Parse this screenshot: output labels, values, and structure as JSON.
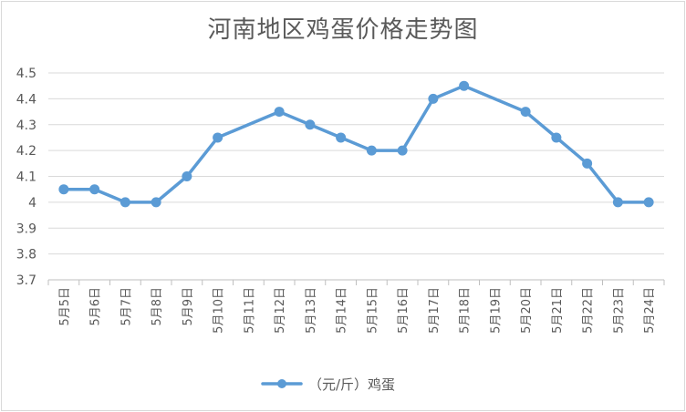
{
  "chart_data": {
    "type": "line",
    "title": "河南地区鸡蛋价格走势图",
    "categories": [
      "5月5日",
      "5月6日",
      "5月7日",
      "5月8日",
      "5月9日",
      "5月10日",
      "5月11日",
      "5月12日",
      "5月13日",
      "5月14日",
      "5月15日",
      "5月16日",
      "5月17日",
      "5月18日",
      "5月19日",
      "5月20日",
      "5月21日",
      "5月22日",
      "5月23日",
      "5月24日"
    ],
    "series": [
      {
        "name": "（元/斤）鸡蛋",
        "values": [
          4.05,
          4.05,
          4.0,
          4.0,
          4.1,
          4.25,
          null,
          4.35,
          4.3,
          4.25,
          4.2,
          4.2,
          4.4,
          4.45,
          null,
          4.35,
          4.25,
          4.15,
          4.0,
          4.0
        ],
        "color": "#5b9bd5"
      }
    ],
    "yticks": [
      "3.7",
      "3.8",
      "3.9",
      "4",
      "4.1",
      "4.2",
      "4.3",
      "4.4",
      "4.5"
    ],
    "ylim": [
      3.7,
      4.5
    ],
    "grid": true,
    "legend": "bottom"
  }
}
